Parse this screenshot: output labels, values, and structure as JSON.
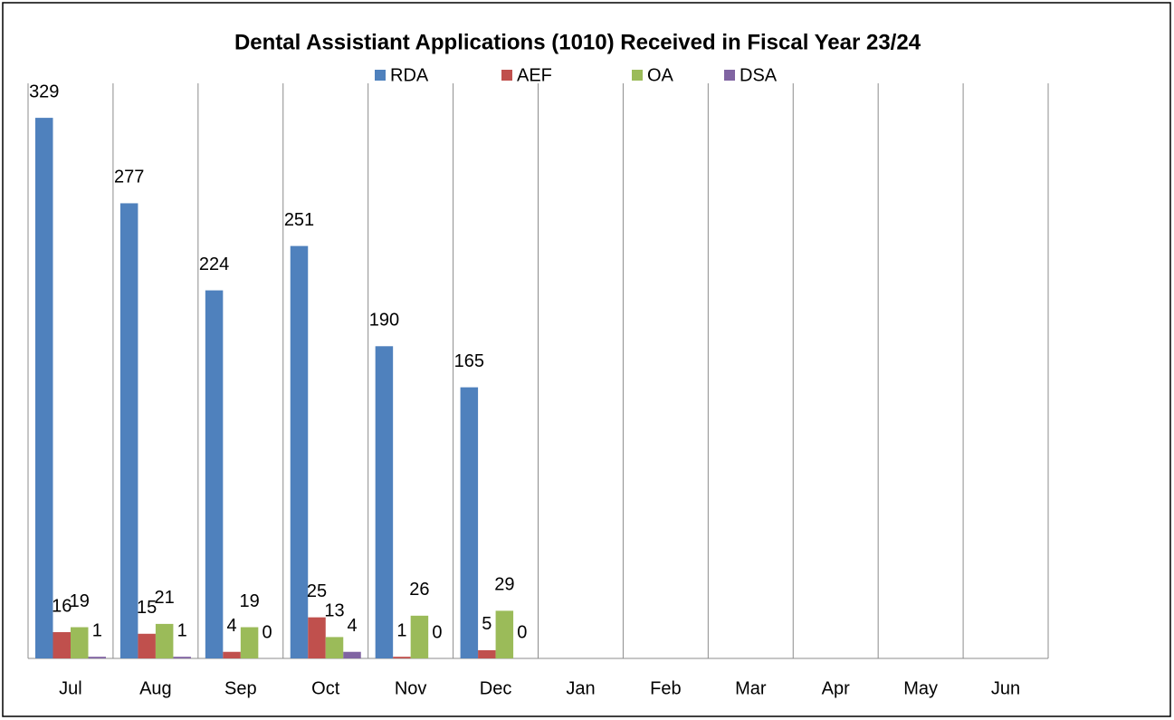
{
  "chart_data": {
    "type": "bar",
    "title": "Dental Assistiant Applications (1010) Received in Fiscal Year 23/24",
    "categories": [
      "Jul",
      "Aug",
      "Sep",
      "Oct",
      "Nov",
      "Dec",
      "Jan",
      "Feb",
      "Mar",
      "Apr",
      "May",
      "Jun"
    ],
    "series": [
      {
        "name": "RDA",
        "color": "#4f81bd",
        "values": [
          329,
          277,
          224,
          251,
          190,
          165,
          null,
          null,
          null,
          null,
          null,
          null
        ]
      },
      {
        "name": "AEF",
        "color": "#c0504d",
        "values": [
          16,
          15,
          4,
          25,
          1,
          5,
          null,
          null,
          null,
          null,
          null,
          null
        ]
      },
      {
        "name": "OA",
        "color": "#9bbb59",
        "values": [
          19,
          21,
          19,
          13,
          26,
          29,
          null,
          null,
          null,
          null,
          null,
          null
        ]
      },
      {
        "name": "DSA",
        "color": "#8064a2",
        "values": [
          1,
          1,
          0,
          4,
          0,
          0,
          null,
          null,
          null,
          null,
          null,
          null
        ]
      }
    ],
    "ylim": [
      0,
      350
    ],
    "legend": "top",
    "grid": true
  }
}
